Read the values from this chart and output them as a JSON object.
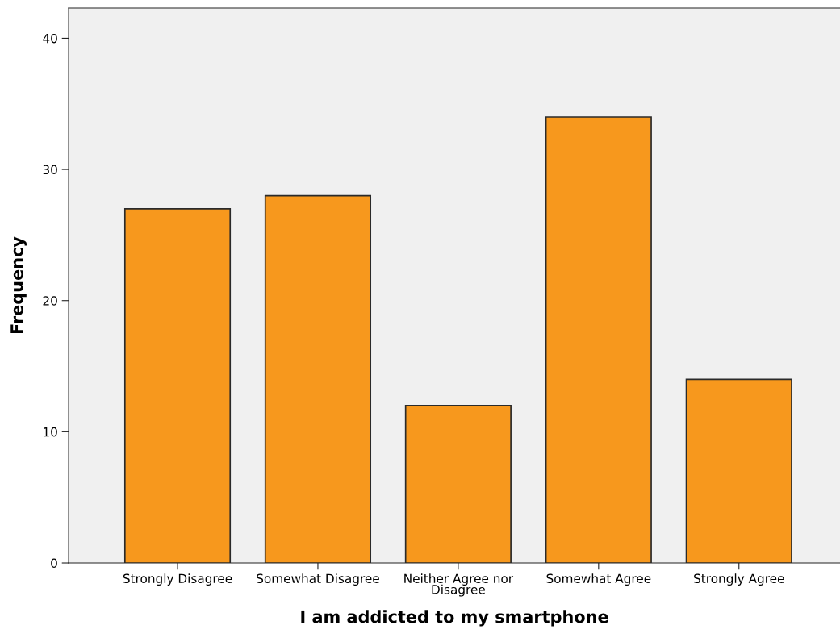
{
  "chart_data": {
    "type": "bar",
    "xlabel": "I am addicted to my smartphone",
    "ylabel": "Frequency",
    "categories": [
      "Strongly Disagree",
      "Somewhat Disagree",
      "Neither Agree nor\nDisagree",
      "Somewhat Agree",
      "Strongly Agree"
    ],
    "values": [
      27,
      28,
      12,
      34,
      14
    ],
    "color": "#f7981d",
    "ylim": [
      0,
      42.3
    ],
    "yticks": [
      0,
      10,
      20,
      30,
      40
    ],
    "grid": false,
    "legend": false
  }
}
